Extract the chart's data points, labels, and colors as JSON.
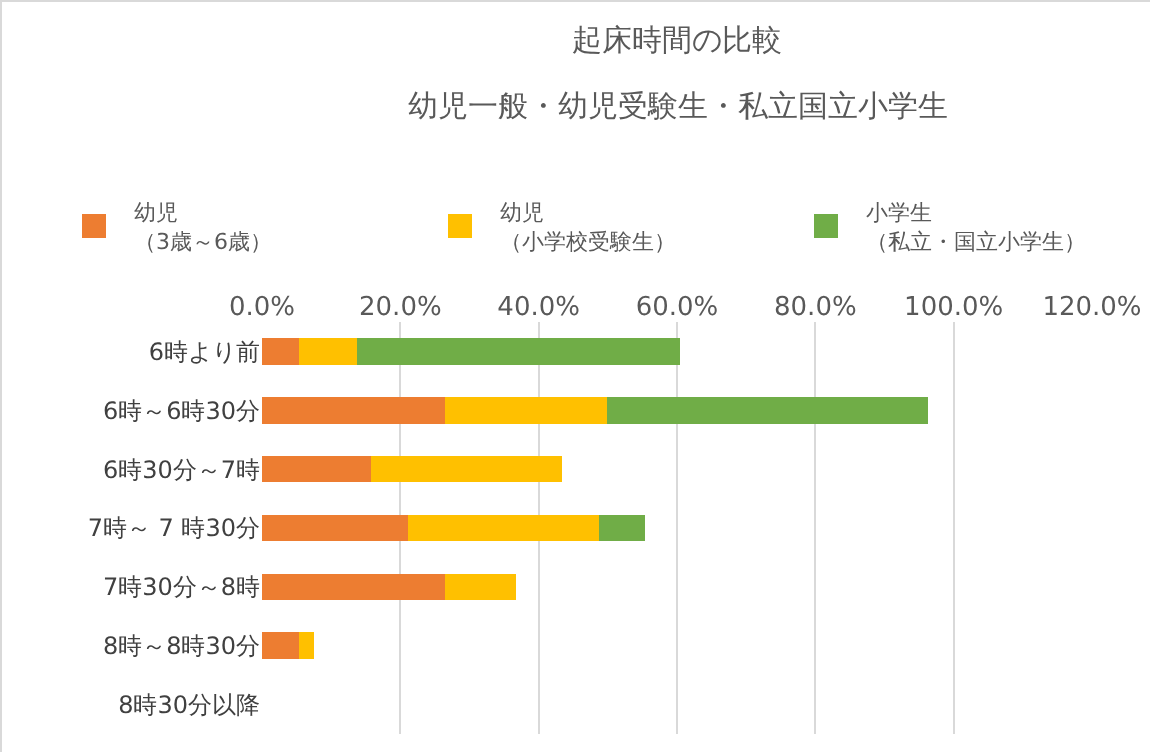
{
  "chart_data": {
    "type": "bar",
    "orientation": "horizontal",
    "stacked": true,
    "title": "起床時間の比較",
    "subtitle": "幼児一般・幼児受験生・私立国立小学生",
    "categories": [
      "6時より前",
      "6時～6時30分",
      "6時30分～7時",
      "7時～ 7 時30分",
      "7時30分～8時",
      "8時～8時30分",
      "8時30分以降"
    ],
    "series": [
      {
        "name": "幼児（3歳～6歳）",
        "color": "#ed7d31",
        "values": [
          5.4,
          26.5,
          15.8,
          21.1,
          26.5,
          5.4,
          0
        ]
      },
      {
        "name": "幼児（小学校受験生）",
        "color": "#ffc000",
        "values": [
          8.3,
          23.4,
          27.5,
          27.6,
          10.2,
          2.1,
          0
        ]
      },
      {
        "name": "小学生（私立・国立小学生）",
        "color": "#70ad47",
        "values": [
          46.7,
          46.4,
          0,
          6.7,
          0,
          0,
          0
        ]
      }
    ],
    "xlim": [
      0,
      120
    ],
    "xticks": [
      {
        "value": 0,
        "label": "0.0%"
      },
      {
        "value": 20,
        "label": "20.0%"
      },
      {
        "value": 40,
        "label": "40.0%"
      },
      {
        "value": 60,
        "label": "60.0%"
      },
      {
        "value": 80,
        "label": "80.0%"
      },
      {
        "value": 100,
        "label": "100.0%"
      },
      {
        "value": 120,
        "label": "120.0%"
      }
    ],
    "grid": "x",
    "legend": "top"
  }
}
